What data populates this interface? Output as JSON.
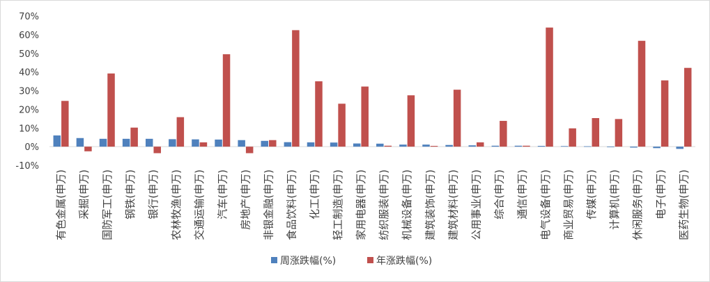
{
  "chart_data": {
    "type": "bar",
    "categories": [
      "有色金属(申万)",
      "采掘(申万)",
      "国防军工(申万)",
      "钢铁(申万)",
      "银行(申万)",
      "农林牧渔(申万)",
      "交通运输(申万)",
      "汽车(申万)",
      "房地产(申万)",
      "非银金融(申万)",
      "食品饮料(申万)",
      "化工(申万)",
      "轻工制造(申万)",
      "家用电器(申万)",
      "纺织服装(申万)",
      "机械设备(申万)",
      "建筑装饰(申万)",
      "建筑材料(申万)",
      "公用事业(申万)",
      "综合(申万)",
      "通信(申万)",
      "电气设备(申万)",
      "商业贸易(申万)",
      "传媒(申万)",
      "计算机(申万)",
      "休闲服务(申万)",
      "电子(申万)",
      "医药生物(申万)"
    ],
    "series": [
      {
        "name": "周涨跌幅(%)",
        "color": "#4f81bd",
        "values": [
          6.0,
          4.6,
          4.2,
          4.2,
          4.2,
          4.0,
          3.9,
          3.8,
          3.5,
          3.1,
          2.4,
          2.3,
          2.2,
          1.7,
          1.6,
          1.1,
          1.1,
          0.9,
          0.7,
          0.5,
          0.5,
          0.4,
          0.3,
          0.2,
          -0.3,
          -0.5,
          -0.8,
          -1.2
        ]
      },
      {
        "name": "年涨跌幅(%)",
        "color": "#c0504d",
        "values": [
          24.5,
          -2.5,
          39.2,
          10.2,
          -3.5,
          15.8,
          2.3,
          49.5,
          -3.5,
          3.5,
          62.4,
          35.0,
          23.0,
          32.2,
          0.5,
          27.5,
          0.4,
          30.5,
          2.3,
          13.8,
          0.5,
          63.8,
          9.8,
          15.3,
          14.8,
          56.7,
          35.5,
          42.2
        ]
      }
    ],
    "yticks": [
      "70%",
      "60%",
      "50%",
      "40%",
      "30%",
      "20%",
      "10%",
      "0%",
      "-10%"
    ],
    "ylim": [
      -10,
      70
    ],
    "grid": false,
    "legend": "bottom"
  }
}
